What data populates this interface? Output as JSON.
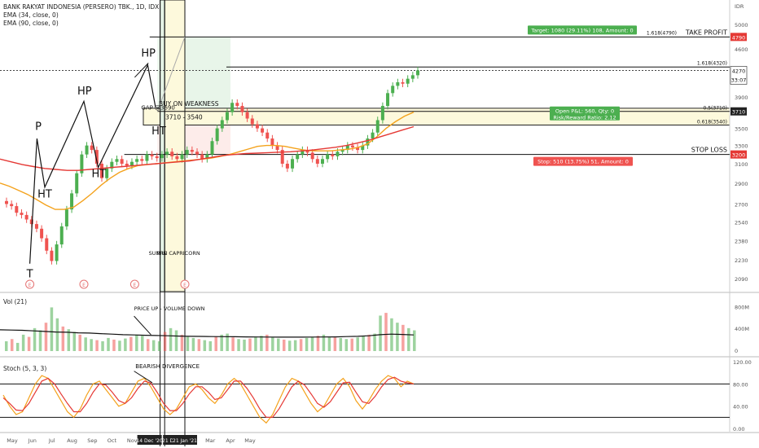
{
  "header": {
    "symbol_line": "BANK RAKYAT INDONESIA (PERSERO) TBK., 1D, IDX",
    "ema34": "EMA (34, close, 0)",
    "ema90": "EMA (90, close, 0)",
    "currency": "IDR"
  },
  "panels": {
    "volume_label": "Vol (21)",
    "stoch_label": "Stoch (5, 3, 3)"
  },
  "annotations": {
    "take_profit": "TAKE PROFIT",
    "stop_loss": "STOP LOSS",
    "fib_1618_4790": "1.618(4790)",
    "fib_1618_4320": "1.618(4320)",
    "fib_05_3710": "0.5(3710)",
    "fib_0618_3540": "0.618(3540)",
    "target": "Target: 1080 (29.11%) 108, Amount: 0",
    "open_pnl": "Open P&L: 560, Qty: 0",
    "risk_reward": "Risk/Reward Ratio: 2.12",
    "stop": "Stop: 510 (13.75%) 51, Amount: 0",
    "buy_on_weakness": "BUY ON WEAKNESS",
    "zone_range": "3710 - 3540",
    "gap": "GAP @3690",
    "pre": "PRE",
    "sun_in_capricorn": "SUN IN CAPRICORN",
    "price_up_volume_down": "PRICE UP - VOLUME DOWN",
    "bearish_divergence": "BEARISH DIVERGENCE",
    "earnings": "E",
    "pattern_labels": [
      {
        "text": "T",
        "x": "2020-05-28",
        "y": 2100
      },
      {
        "text": "P",
        "x": "2020-06-10",
        "y": 3480
      },
      {
        "text": "HT",
        "x": "2020-06-20",
        "y": 2760
      },
      {
        "text": "HP",
        "x": "2020-08-20",
        "y": 3930
      },
      {
        "text": "HT",
        "x": "2020-09-11",
        "y": 2960
      },
      {
        "text": "HP",
        "x": "2020-11-26",
        "y": 4480
      },
      {
        "text": "HT",
        "x": "2020-12-12",
        "y": 3430
      }
    ]
  },
  "price_tags": {
    "p4790": "4790",
    "p4270": "4270",
    "countdown": "33:07",
    "p3710": "3710",
    "p3200": "3200",
    "vol_800m": "800M",
    "vol_400m": "400M",
    "vol_0": "0",
    "st_120": "120.00",
    "st_80": "80.00",
    "st_40": "40.00",
    "st_0": "0.00"
  },
  "colors": {
    "up": "#4caf50",
    "down": "#ef5350",
    "ema34": "#f4a21c",
    "ema90": "#e53935",
    "target_box": "#4caf50",
    "stop_box": "#ef5350",
    "stoch_k": "#f4a21c",
    "stoch_d": "#e53935",
    "yellow_zone": "#fdf9dc",
    "green_zone": "#e8f5e9",
    "pink_zone": "#fdecea"
  },
  "chart_data": {
    "type": "candlestick",
    "yaxis_ticks": [
      5000,
      4600,
      4270,
      3900,
      3710,
      3500,
      3300,
      3100,
      2900,
      2700,
      2540,
      2380,
      2230,
      2090
    ],
    "x_ticks": [
      "May",
      "Jun",
      "Jul",
      "Aug",
      "Sep",
      "Oct",
      "Nov",
      "Dec",
      "14 Dec '20",
      "21 Dec '20",
      "21 Jan '21",
      "Feb",
      "Mar",
      "Apr",
      "May"
    ],
    "pattern_path": [
      [
        "2020-05-28",
        2200
      ],
      [
        "2020-06-08",
        3380
      ],
      [
        "2020-06-20",
        2860
      ],
      [
        "2020-08-19",
        3840
      ],
      [
        "2020-09-10",
        3060
      ],
      [
        "2020-11-25",
        4350
      ],
      [
        "2020-12-07",
        3760
      ]
    ],
    "price_series": [
      2700,
      2680,
      2620,
      2600,
      2560,
      2520,
      2480,
      2400,
      2300,
      2220,
      2350,
      2500,
      2650,
      2800,
      3000,
      3200,
      3300,
      3250,
      3100,
      2950,
      3050,
      3120,
      3150,
      3100,
      3080,
      3120,
      3150,
      3130,
      3200,
      3180,
      3160,
      3200,
      3230,
      3180,
      3150,
      3200,
      3250,
      3230,
      3200,
      3150,
      3200,
      3350,
      3500,
      3600,
      3700,
      3820,
      3780,
      3700,
      3620,
      3550,
      3500,
      3450,
      3380,
      3300,
      3250,
      3100,
      3050,
      3150,
      3200,
      3250,
      3220,
      3150,
      3100,
      3150,
      3200,
      3180,
      3230,
      3250,
      3300,
      3280,
      3250,
      3300,
      3380,
      3450,
      3600,
      3780,
      3950,
      4050,
      4100,
      4080,
      4150,
      4200,
      4270
    ],
    "ema34": [
      2900,
      2870,
      2830,
      2790,
      2740,
      2690,
      2650,
      2650,
      2670,
      2730,
      2800,
      2880,
      2950,
      3010,
      3050,
      3080,
      3090,
      3100,
      3110,
      3120,
      3130,
      3140,
      3150,
      3160,
      3180,
      3200,
      3230,
      3260,
      3290,
      3300,
      3300,
      3290,
      3270,
      3250,
      3240,
      3240,
      3240,
      3250,
      3260,
      3280,
      3320,
      3400,
      3500,
      3580,
      3650,
      3700
    ],
    "ema90": [
      3150,
      3120,
      3090,
      3070,
      3050,
      3040,
      3030,
      3030,
      3040,
      3050,
      3060,
      3070,
      3080,
      3090,
      3100,
      3110,
      3120,
      3130,
      3150,
      3170,
      3190,
      3200,
      3210,
      3215,
      3220,
      3225,
      3230,
      3240,
      3250,
      3265,
      3280,
      3300,
      3330,
      3360,
      3400,
      3440,
      3480,
      3520
    ],
    "volume_series": [
      180,
      220,
      150,
      300,
      260,
      420,
      380,
      520,
      800,
      600,
      450,
      400,
      350,
      300,
      250,
      220,
      200,
      180,
      240,
      210,
      190,
      230,
      260,
      300,
      280,
      220,
      200,
      180,
      350,
      420,
      380,
      300,
      260,
      240,
      220,
      200,
      180,
      260,
      300,
      320,
      250,
      220,
      210,
      230,
      260,
      280,
      300,
      250,
      230,
      210,
      190,
      200,
      220,
      240,
      260,
      280,
      300,
      260,
      250,
      240,
      220,
      230,
      250,
      270,
      300,
      320,
      650,
      700,
      600,
      520,
      480,
      420,
      380
    ],
    "volume_ma": [
      390,
      385,
      380,
      370,
      360,
      350,
      345,
      335,
      330,
      320,
      310,
      300,
      295,
      290,
      285,
      280,
      275,
      270,
      268,
      266,
      264,
      262,
      260,
      258,
      256,
      255,
      255,
      255,
      256,
      258,
      260,
      265,
      270,
      280,
      300,
      310,
      305,
      295
    ],
    "stoch_k": [
      60,
      40,
      25,
      30,
      55,
      80,
      95,
      90,
      70,
      50,
      30,
      20,
      35,
      60,
      80,
      85,
      70,
      55,
      40,
      45,
      65,
      85,
      90,
      75,
      55,
      35,
      25,
      35,
      55,
      75,
      80,
      70,
      55,
      45,
      60,
      80,
      90,
      80,
      60,
      40,
      20,
      10,
      25,
      50,
      75,
      90,
      85,
      65,
      45,
      30,
      40,
      60,
      80,
      90,
      75,
      50,
      35,
      50,
      70,
      85,
      95,
      90,
      75,
      85,
      80
    ],
    "stoch_d": [
      55,
      45,
      33,
      32,
      45,
      65,
      85,
      90,
      80,
      62,
      45,
      30,
      30,
      45,
      65,
      80,
      78,
      65,
      50,
      45,
      55,
      72,
      85,
      82,
      65,
      45,
      32,
      32,
      45,
      62,
      75,
      75,
      65,
      52,
      55,
      70,
      85,
      85,
      72,
      55,
      35,
      20,
      20,
      35,
      55,
      75,
      85,
      78,
      62,
      45,
      38,
      48,
      65,
      82,
      83,
      65,
      48,
      45,
      58,
      75,
      88,
      92,
      85,
      82,
      80
    ],
    "stoch_levels": [
      80,
      20
    ]
  }
}
